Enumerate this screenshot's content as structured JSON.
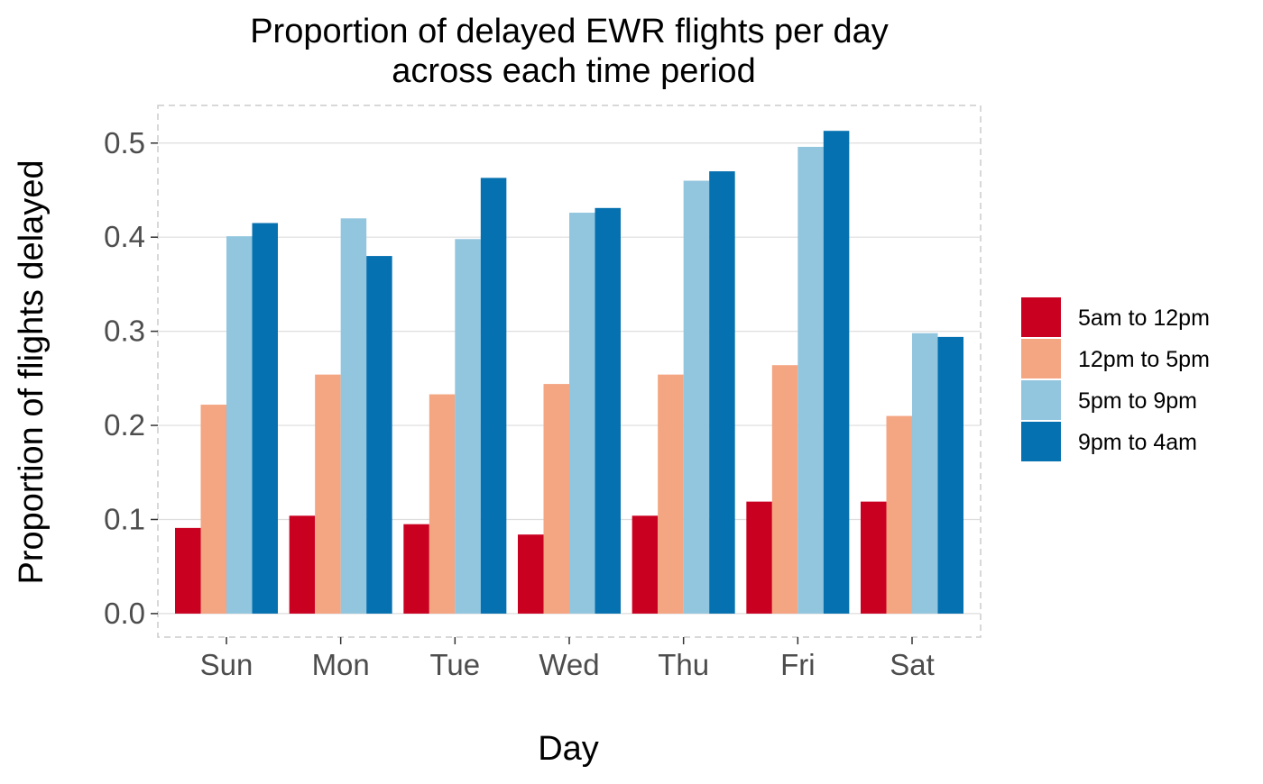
{
  "chart_data": {
    "type": "bar",
    "title": "Proportion of delayed EWR flights per day",
    "subtitle": "across each time period",
    "xlabel": "Day",
    "ylabel": "Proportion of flights delayed",
    "categories": [
      "Sun",
      "Mon",
      "Tue",
      "Wed",
      "Thu",
      "Fri",
      "Sat"
    ],
    "y_ticks": [
      "0.0",
      "0.1",
      "0.2",
      "0.3",
      "0.4",
      "0.5"
    ],
    "ylim": [
      -0.025,
      0.54
    ],
    "grid": true,
    "legend_position": "right",
    "series": [
      {
        "name": "5am to 12pm",
        "color": "#ca0020",
        "values": [
          0.091,
          0.104,
          0.095,
          0.084,
          0.104,
          0.119,
          0.119
        ]
      },
      {
        "name": "12pm to 5pm",
        "color": "#f4a582",
        "values": [
          0.222,
          0.254,
          0.233,
          0.244,
          0.254,
          0.264,
          0.21
        ]
      },
      {
        "name": "5pm to 9pm",
        "color": "#92c5de",
        "values": [
          0.401,
          0.42,
          0.398,
          0.426,
          0.46,
          0.496,
          0.298
        ]
      },
      {
        "name": "9pm to 4am",
        "color": "#0571b0",
        "values": [
          0.415,
          0.38,
          0.463,
          0.431,
          0.47,
          0.513,
          0.294
        ]
      }
    ]
  }
}
